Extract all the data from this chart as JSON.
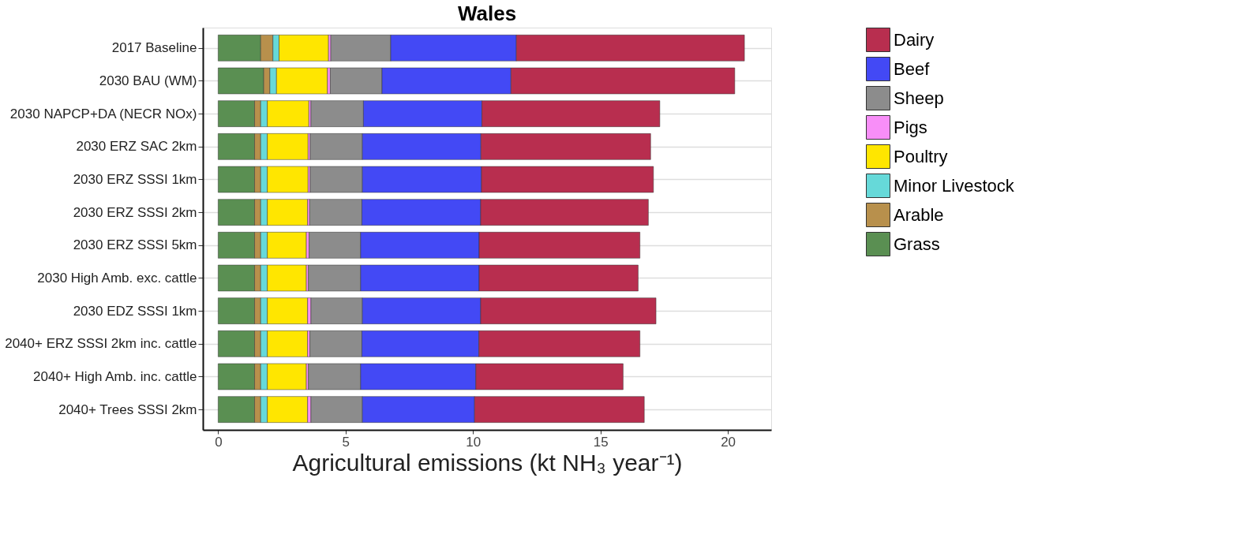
{
  "chart_data": {
    "type": "bar",
    "orientation": "horizontal",
    "stacked": true,
    "title": "Wales",
    "xlabel": "Agricultural emissions (kt NH₃ year⁻¹)",
    "categories": [
      "2017 Baseline",
      "2030 BAU (WM)",
      "2030 NAPCP+DA (NECR NOx)",
      "2030 ERZ SAC 2km",
      "2030 ERZ SSSI 1km",
      "2030 ERZ SSSI 2km",
      "2030 ERZ SSSI 5km",
      "2030 High Amb. exc. cattle",
      "2030 EDZ SSSI 1km",
      "2040+ ERZ SSSI 2km inc. cattle",
      "2040+ High Amb. inc. cattle",
      "2040+ Trees SSSI 2km"
    ],
    "series": [
      {
        "name": "Grass",
        "color": "#5a8f52",
        "values": [
          1.67,
          1.79,
          1.43,
          1.43,
          1.43,
          1.43,
          1.43,
          1.43,
          1.43,
          1.43,
          1.43,
          1.43
        ]
      },
      {
        "name": "Arable",
        "color": "#b8904c",
        "values": [
          0.48,
          0.24,
          0.24,
          0.24,
          0.24,
          0.24,
          0.24,
          0.24,
          0.24,
          0.24,
          0.24,
          0.24
        ]
      },
      {
        "name": "Minor Livestock",
        "color": "#66d9d9",
        "values": [
          0.24,
          0.26,
          0.26,
          0.26,
          0.26,
          0.26,
          0.26,
          0.26,
          0.26,
          0.26,
          0.26,
          0.26
        ]
      },
      {
        "name": "Poultry",
        "color": "#ffe600",
        "values": [
          1.94,
          2.0,
          1.63,
          1.6,
          1.6,
          1.58,
          1.53,
          1.53,
          1.58,
          1.58,
          1.53,
          1.58
        ]
      },
      {
        "name": "Pigs",
        "color": "#f88ef8",
        "values": [
          0.09,
          0.11,
          0.08,
          0.08,
          0.08,
          0.08,
          0.11,
          0.08,
          0.13,
          0.09,
          0.08,
          0.13
        ]
      },
      {
        "name": "Sheep",
        "color": "#8c8c8c",
        "values": [
          2.35,
          2.03,
          2.06,
          2.05,
          2.05,
          2.05,
          2.02,
          2.05,
          2.02,
          2.04,
          2.05,
          2.02
        ]
      },
      {
        "name": "Beef",
        "color": "#4349f5",
        "values": [
          4.93,
          5.06,
          4.65,
          4.65,
          4.67,
          4.66,
          4.65,
          4.65,
          4.64,
          4.59,
          4.52,
          4.4
        ]
      },
      {
        "name": "Dairy",
        "color": "#b82e4f",
        "values": [
          8.95,
          8.78,
          6.98,
          6.66,
          6.75,
          6.58,
          6.31,
          6.24,
          6.88,
          6.32,
          5.78,
          6.66
        ]
      }
    ],
    "xlim": [
      -0.6,
      21.7
    ],
    "xticks": [
      0,
      5,
      10,
      15,
      20
    ],
    "grid": "y",
    "legend": "right"
  }
}
